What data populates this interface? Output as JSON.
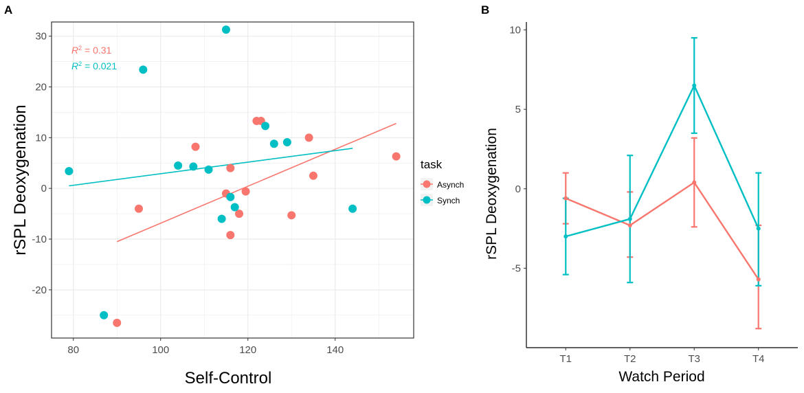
{
  "figure": {
    "colors": {
      "asynch": "#F8766D",
      "synch": "#00BFC4",
      "grid": "#ebebeb",
      "axis": "#333333"
    }
  },
  "chart_data": [
    {
      "panel": "A",
      "type": "scatter",
      "xlabel": "Self-Control",
      "ylabel": "rSPL Deoxygenation",
      "xlim": [
        75,
        158
      ],
      "ylim": [
        -29.5,
        32.8
      ],
      "xticks": [
        80,
        100,
        120,
        140
      ],
      "yticks": [
        -20,
        -10,
        0,
        10,
        20,
        30
      ],
      "grid": true,
      "legend": {
        "title": "task",
        "position": "right",
        "entries": [
          "Asynch",
          "Synch"
        ]
      },
      "annotations": [
        {
          "series": "Asynch",
          "label": "R",
          "sup": "2",
          "value": " = 0.31"
        },
        {
          "series": "Synch",
          "label": "R",
          "sup": "2",
          "value": " = 0.021"
        }
      ],
      "series": [
        {
          "name": "Asynch",
          "color": "#F8766D",
          "points": [
            [
              90,
              -26.5
            ],
            [
              95,
              -4
            ],
            [
              108,
              8.2
            ],
            [
              115,
              -1
            ],
            [
              116,
              4
            ],
            [
              116,
              -9.2
            ],
            [
              118,
              -5
            ],
            [
              119.5,
              -0.6
            ],
            [
              122,
              13.3
            ],
            [
              123,
              13.3
            ],
            [
              130,
              -5.3
            ],
            [
              134,
              10
            ],
            [
              135,
              2.5
            ],
            [
              154,
              6.3
            ]
          ],
          "fit": {
            "x": [
              90,
              154
            ],
            "y": [
              -10.5,
              12.8
            ]
          }
        },
        {
          "name": "Synch",
          "color": "#00BFC4",
          "points": [
            [
              79,
              3.4
            ],
            [
              87,
              -25
            ],
            [
              96,
              23.4
            ],
            [
              104,
              4.5
            ],
            [
              107.5,
              4.3
            ],
            [
              111,
              3.7
            ],
            [
              114,
              -6
            ],
            [
              115,
              31.3
            ],
            [
              116,
              -1.7
            ],
            [
              117,
              -3.7
            ],
            [
              124,
              12.3
            ],
            [
              126,
              8.8
            ],
            [
              129,
              9.1
            ],
            [
              144,
              -4
            ]
          ],
          "fit": {
            "x": [
              79,
              144
            ],
            "y": [
              0.5,
              7.9
            ]
          }
        }
      ]
    },
    {
      "panel": "B",
      "type": "line",
      "xlabel": "Watch Period",
      "ylabel": "rSPL Deoxygenation",
      "categories": [
        "T1",
        "T2",
        "T3",
        "T4"
      ],
      "ylim": [
        -10,
        10.5
      ],
      "yticks": [
        -5,
        0,
        5,
        10
      ],
      "grid": false,
      "series": [
        {
          "name": "Asynch",
          "color": "#F8766D",
          "values": [
            -0.6,
            -2.3,
            0.4,
            -5.7
          ],
          "lower": [
            -2.2,
            -4.3,
            -2.4,
            -8.8
          ],
          "upper": [
            1.0,
            -0.2,
            3.2,
            -2.3
          ]
        },
        {
          "name": "Synch",
          "color": "#00BFC4",
          "values": [
            -3.0,
            -1.9,
            6.5,
            -2.5
          ],
          "lower": [
            -5.4,
            -5.9,
            3.5,
            -6.1
          ],
          "upper": [
            -0.6,
            2.1,
            9.5,
            1.0
          ]
        }
      ]
    }
  ]
}
